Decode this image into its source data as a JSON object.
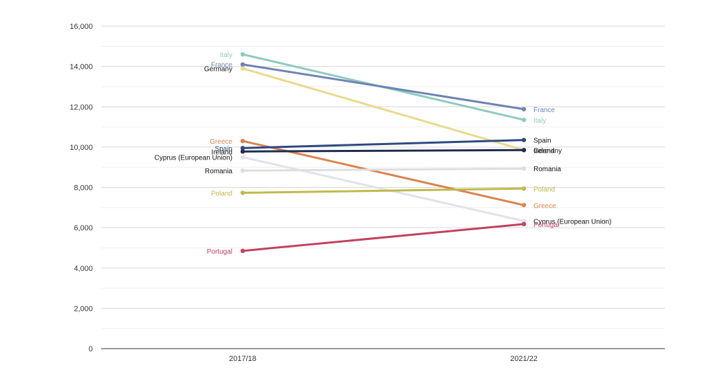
{
  "chart_data": {
    "type": "line",
    "title": "",
    "xlabel": "",
    "ylabel": "",
    "categories": [
      "2017/18",
      "2021/22"
    ],
    "ylim": [
      0,
      16000
    ],
    "yticks": [
      0,
      2000,
      4000,
      6000,
      8000,
      10000,
      12000,
      14000,
      16000
    ],
    "ytick_labels": [
      "0",
      "2,000",
      "4,000",
      "6,000",
      "8,000",
      "10,000",
      "12,000",
      "14,000",
      "16,000"
    ],
    "grid": true,
    "series": [
      {
        "name": "Italy",
        "values": [
          14600,
          11350
        ],
        "color": "#8ecbbe"
      },
      {
        "name": "France",
        "values": [
          14100,
          11880
        ],
        "color": "#6e83b5"
      },
      {
        "name": "Germany",
        "values": [
          13900,
          9850
        ],
        "color": "#e8da8c"
      },
      {
        "name": "Greece",
        "values": [
          10300,
          7120
        ],
        "color": "#d9844d"
      },
      {
        "name": "Spain",
        "values": [
          9950,
          10350
        ],
        "color": "#2f4882"
      },
      {
        "name": "Ireland",
        "values": [
          9780,
          9850
        ],
        "color": "#1d2c4f"
      },
      {
        "name": "Cyprus (European Union)",
        "values": [
          9500,
          6330
        ],
        "color": "#e2e1ea"
      },
      {
        "name": "Romania",
        "values": [
          8830,
          8930
        ],
        "color": "#dedede"
      },
      {
        "name": "Poland",
        "values": [
          7730,
          7940
        ],
        "color": "#c0b94a"
      },
      {
        "name": "Portugal",
        "values": [
          4850,
          6180
        ],
        "color": "#c2415f"
      }
    ]
  }
}
